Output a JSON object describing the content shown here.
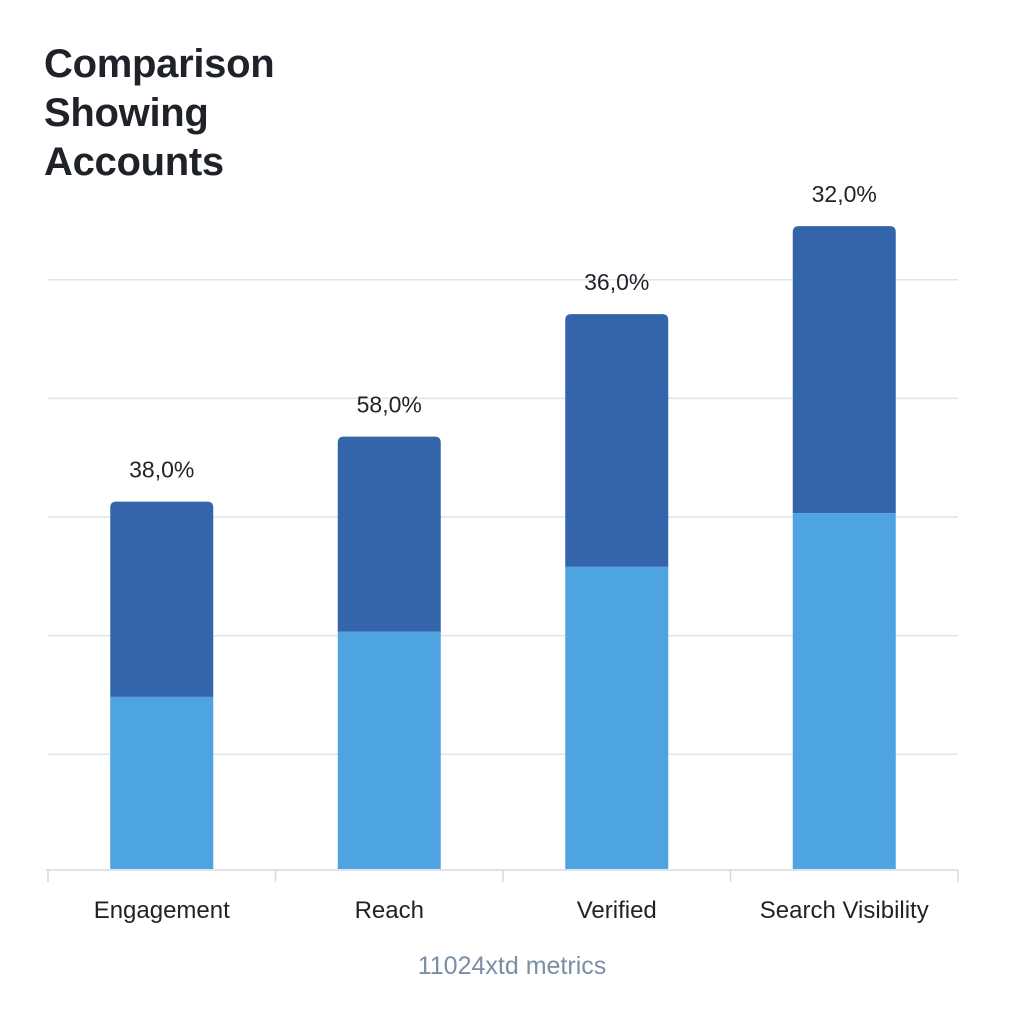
{
  "title": [
    "Comparison",
    "Showing",
    "Accounts"
  ],
  "caption": "11024xtd metrics",
  "colors": {
    "bottom_segment": "#4ea4e0",
    "top_segment": "#3464aa",
    "grid": "#dde4ec",
    "text": "#1f2228",
    "caption": "#7b8ea6"
  },
  "chart_data": {
    "type": "bar",
    "stacked": true,
    "title": "Comparison Showing Accounts",
    "categories": [
      "Engagement",
      "Reach",
      "Verified",
      "Search Visibility"
    ],
    "data_labels": [
      "38,0%",
      "58,0%",
      "36,0%",
      "32,0%"
    ],
    "series": [
      {
        "values": [
          45,
          62,
          79,
          93
        ]
      },
      {
        "values": [
          51,
          51,
          66,
          75
        ]
      }
    ],
    "ylim": [
      0,
      167
    ],
    "y_ticks": [
      0,
      30,
      61,
      92,
      123,
      154
    ],
    "grid": true,
    "legend": "none"
  }
}
